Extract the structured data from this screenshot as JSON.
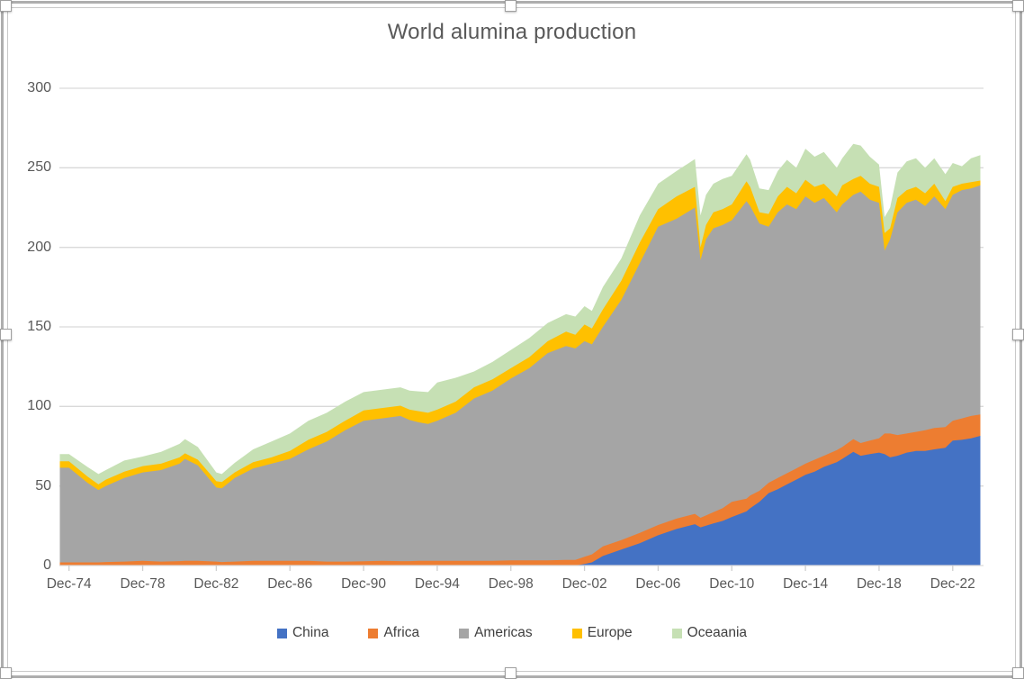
{
  "chart_data": {
    "type": "area",
    "stacked": true,
    "title": "World alumina production",
    "xlabel": "",
    "ylabel": "",
    "ylim": [
      0,
      300
    ],
    "y_ticks": [
      0,
      50,
      100,
      150,
      200,
      250,
      300
    ],
    "gridlines": "horizontal",
    "legend_position": "bottom",
    "x_unit": "years after Dec-1974 (monthly series)",
    "x_tick_positions": [
      0,
      4,
      8,
      12,
      16,
      20,
      24,
      28,
      32,
      36,
      40,
      44,
      48
    ],
    "x_tick_labels": [
      "Dec-74",
      "Dec-78",
      "Dec-82",
      "Dec-86",
      "Dec-90",
      "Dec-94",
      "Dec-98",
      "Dec-02",
      "Dec-06",
      "Dec-10",
      "Dec-14",
      "Dec-18",
      "Dec-22"
    ],
    "x": [
      -0.5,
      0,
      1,
      1.6,
      2,
      3,
      4,
      5,
      6,
      6.3,
      7,
      8,
      8.3,
      9,
      10,
      11,
      12,
      13,
      14,
      15,
      16,
      17,
      18,
      18.5,
      19,
      19.5,
      20,
      21,
      22,
      23,
      24,
      25,
      26,
      27,
      27.5,
      28,
      28.4,
      29,
      30,
      31,
      32,
      33,
      34,
      34.3,
      34.6,
      35,
      35.5,
      36,
      36.8,
      37,
      37.5,
      38,
      38.5,
      39,
      39.5,
      40,
      40.5,
      41,
      41.7,
      42,
      42.6,
      43,
      43.5,
      44,
      44.3,
      44.6,
      45,
      45.5,
      46,
      46.5,
      47,
      47.6,
      48,
      48.5,
      49,
      49.5
    ],
    "series": [
      {
        "name": "China",
        "color": "#4472C4",
        "values": [
          0,
          0,
          0,
          0,
          0,
          0,
          0,
          0,
          0,
          0,
          0,
          0,
          0,
          0,
          0,
          0,
          0,
          0,
          0,
          0,
          0,
          0,
          0,
          0,
          0,
          0,
          0,
          0,
          0,
          0,
          0,
          0,
          0,
          0,
          0,
          1,
          2,
          6,
          10,
          14,
          19,
          23,
          26,
          24,
          25,
          26.5,
          28,
          30.5,
          34,
          36,
          40,
          45.5,
          48,
          51,
          54,
          57,
          59,
          62,
          65,
          67,
          71.5,
          69,
          70,
          71,
          70,
          68,
          69,
          71,
          72,
          72,
          73,
          74,
          78.5,
          79,
          80,
          81.5
        ]
      },
      {
        "name": "Africa",
        "color": "#ED7D31",
        "values": [
          2,
          2,
          2,
          2,
          2.2,
          2.5,
          3,
          2.5,
          2.8,
          3,
          3,
          2.5,
          2.2,
          2.5,
          3,
          3,
          3,
          3,
          2.5,
          2.5,
          2.7,
          3,
          2.8,
          2.8,
          3,
          3,
          3,
          3,
          3,
          3,
          3.2,
          3.2,
          3.3,
          3.5,
          3.5,
          4.5,
          5,
          6,
          6,
          6.5,
          6.5,
          6.5,
          6.5,
          6,
          6.5,
          7,
          8,
          9.5,
          8,
          8,
          7,
          6.5,
          7,
          7,
          7,
          7,
          7.5,
          7,
          7.5,
          7.5,
          8,
          8,
          8.5,
          9,
          13,
          15,
          13,
          12,
          12,
          13,
          13.5,
          13,
          12.5,
          13.5,
          14,
          13.5
        ]
      },
      {
        "name": "Americas",
        "color": "#A5A5A5",
        "values": [
          59.5,
          59.5,
          50,
          45.5,
          47.8,
          52.5,
          55.5,
          57.5,
          61.2,
          64,
          60,
          46.5,
          46.3,
          52.5,
          58,
          61,
          64,
          70,
          75.5,
          82.5,
          88.3,
          89.5,
          91.2,
          88.7,
          87,
          86,
          88,
          93,
          102,
          107,
          114.3,
          120.8,
          130.2,
          134.5,
          133,
          135.5,
          132,
          138,
          151,
          169.5,
          187.5,
          188.5,
          192.5,
          162,
          173.5,
          178.5,
          178,
          177,
          187,
          182,
          168,
          161,
          167,
          169,
          163,
          168,
          161.5,
          162,
          149.5,
          152.5,
          153.5,
          158,
          151.5,
          148,
          115,
          122,
          140,
          145,
          146,
          141,
          145.5,
          137,
          142,
          143.5,
          143,
          144
        ]
      },
      {
        "name": "Europe",
        "color": "#FFC000",
        "values": [
          4,
          4,
          4,
          3.5,
          4,
          4,
          4,
          4,
          4,
          3.5,
          3.5,
          4,
          4,
          3.5,
          4,
          4,
          5,
          6,
          6,
          6,
          6.5,
          6.5,
          6.5,
          6.5,
          7,
          7,
          7,
          7,
          7,
          7,
          6.5,
          7,
          7.5,
          9,
          8.5,
          10.5,
          10,
          11,
          12,
          13,
          11,
          14,
          13,
          8,
          9,
          10,
          10,
          10,
          12.5,
          12,
          7,
          8,
          10,
          11,
          10,
          10.5,
          10,
          9,
          10,
          12,
          10,
          10,
          10,
          10,
          11,
          7,
          9,
          8,
          8,
          8,
          8,
          5,
          5,
          4,
          4,
          3
        ]
      },
      {
        "name": "Oceaania",
        "color": "#C6E0B4",
        "values": [
          4.5,
          4.5,
          6,
          6.5,
          6,
          7,
          6,
          7.5,
          8.5,
          9,
          8,
          5.5,
          5,
          6,
          8,
          10,
          11,
          12,
          12,
          12,
          11.5,
          11.5,
          11.5,
          12,
          12.5,
          13,
          17,
          15,
          10,
          11,
          11.5,
          12,
          11.5,
          11,
          11.5,
          11.5,
          11,
          14,
          14,
          17,
          16,
          16,
          17.5,
          20,
          19,
          18,
          19,
          18,
          17,
          17,
          15,
          15,
          16,
          17,
          16,
          19.5,
          19,
          20,
          18,
          17,
          22,
          19,
          17,
          14,
          10,
          13,
          16,
          18,
          18,
          16,
          16,
          17,
          15,
          11,
          15,
          16
        ]
      }
    ],
    "colors": {
      "gridline": "#D9D9D9",
      "axis_text": "#595959",
      "legend_text": "#404040",
      "title_text": "#595959"
    }
  }
}
